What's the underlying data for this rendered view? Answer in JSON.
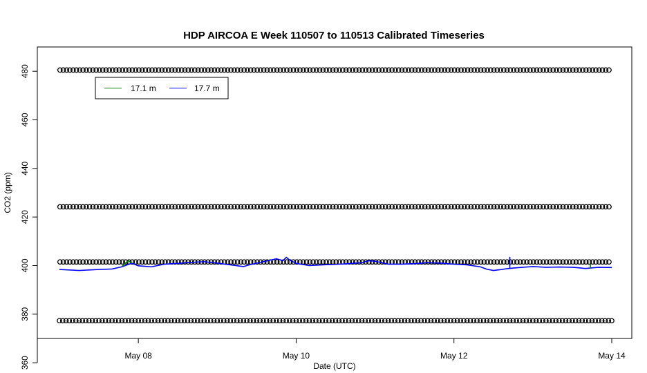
{
  "chart_data": {
    "type": "line",
    "title": "HDP AIRCOA E  Week 110507 to 110513  Calibrated Timeseries",
    "xlabel": "Date (UTC)",
    "ylabel": "CO2 (ppm)",
    "xlim": [
      "2011-05-07T00:00",
      "2011-05-14T00:00"
    ],
    "ylim": [
      370,
      490
    ],
    "x_ticks": [
      {
        "t": "2011-05-08",
        "label": "May 08"
      },
      {
        "t": "2011-05-10",
        "label": "May 10"
      },
      {
        "t": "2011-05-12",
        "label": "May 12"
      },
      {
        "t": "2011-05-14",
        "label": "May 14"
      }
    ],
    "y_ticks": [
      360,
      380,
      400,
      420,
      440,
      460,
      480
    ],
    "grid": false,
    "legend": {
      "position": "top-left",
      "entries": [
        {
          "name": "17.1 m",
          "color": "#008000"
        },
        {
          "name": "17.7 m",
          "color": "#0000ff"
        }
      ]
    },
    "calibration_points": {
      "marker": "open-circle",
      "color": "#000000",
      "levels": [
        {
          "value": 480.5,
          "start": "2011-05-07T00:10",
          "end": "2011-05-14T00:00",
          "step_hours": 1
        },
        {
          "value": 424.2,
          "start": "2011-05-07T00:10",
          "end": "2011-05-14T00:00",
          "step_hours": 1
        },
        {
          "value": 401.5,
          "start": "2011-05-07T00:10",
          "end": "2011-05-14T00:00",
          "step_hours": 1
        },
        {
          "value": 377.3,
          "start": "2011-05-07T00:00",
          "end": "2011-05-14T00:00",
          "step_hours": 1
        }
      ]
    },
    "series": [
      {
        "name": "17.7 m",
        "color": "#0000ff",
        "points": [
          [
            "2011-05-07T00:00",
            398.4
          ],
          [
            "2011-05-07T06:00",
            398.0
          ],
          [
            "2011-05-07T12:00",
            398.4
          ],
          [
            "2011-05-07T16:00",
            398.6
          ],
          [
            "2011-05-07T19:00",
            399.5
          ],
          [
            "2011-05-07T22:00",
            401.0
          ],
          [
            "2011-05-08T00:00",
            399.9
          ],
          [
            "2011-05-08T04:00",
            399.5
          ],
          [
            "2011-05-08T08:00",
            400.6
          ],
          [
            "2011-05-08T12:00",
            400.9
          ],
          [
            "2011-05-08T16:00",
            401.3
          ],
          [
            "2011-05-08T20:00",
            401.6
          ],
          [
            "2011-05-09T00:00",
            401.0
          ],
          [
            "2011-05-09T04:00",
            400.3
          ],
          [
            "2011-05-09T08:00",
            399.6
          ],
          [
            "2011-05-09T10:00",
            400.4
          ],
          [
            "2011-05-09T12:00",
            401.0
          ],
          [
            "2011-05-09T14:00",
            401.6
          ],
          [
            "2011-05-09T16:00",
            402.2
          ],
          [
            "2011-05-09T18:00",
            402.8
          ],
          [
            "2011-05-09T20:00",
            402.0
          ],
          [
            "2011-05-09T21:00",
            403.4
          ],
          [
            "2011-05-09T22:00",
            402.3
          ],
          [
            "2011-05-10T00:00",
            400.9
          ],
          [
            "2011-05-10T04:00",
            400.0
          ],
          [
            "2011-05-10T08:00",
            400.3
          ],
          [
            "2011-05-10T12:00",
            400.5
          ],
          [
            "2011-05-10T16:00",
            400.8
          ],
          [
            "2011-05-10T20:00",
            401.2
          ],
          [
            "2011-05-10T22:00",
            402.0
          ],
          [
            "2011-05-11T00:00",
            401.8
          ],
          [
            "2011-05-11T04:00",
            400.6
          ],
          [
            "2011-05-11T08:00",
            400.6
          ],
          [
            "2011-05-11T12:00",
            400.8
          ],
          [
            "2011-05-11T16:00",
            401.2
          ],
          [
            "2011-05-11T20:00",
            401.0
          ],
          [
            "2011-05-12T00:00",
            400.6
          ],
          [
            "2011-05-12T04:00",
            400.3
          ],
          [
            "2011-05-12T08:00",
            399.5
          ],
          [
            "2011-05-12T10:00",
            398.5
          ],
          [
            "2011-05-12T12:00",
            398.0
          ],
          [
            "2011-05-12T14:00",
            398.3
          ],
          [
            "2011-05-12T16:00",
            398.7
          ],
          [
            "2011-05-12T18:00",
            399.0
          ],
          [
            "2011-05-12T20:00",
            399.2
          ],
          [
            "2011-05-12T22:00",
            399.4
          ],
          [
            "2011-05-13T00:00",
            399.6
          ],
          [
            "2011-05-13T04:00",
            399.3
          ],
          [
            "2011-05-13T08:00",
            399.4
          ],
          [
            "2011-05-13T12:00",
            399.3
          ],
          [
            "2011-05-13T14:00",
            399.1
          ],
          [
            "2011-05-13T16:00",
            398.8
          ],
          [
            "2011-05-13T20:00",
            399.3
          ],
          [
            "2011-05-14T00:00",
            399.2
          ]
        ]
      },
      {
        "name": "17.1 m",
        "color": "#008000",
        "points": [
          [
            "2011-05-07T19:00",
            399.6
          ],
          [
            "2011-05-07T20:00",
            401.0
          ],
          [
            "2011-05-07T21:00",
            402.0
          ],
          [
            "2011-05-07T22:00",
            401.0
          ]
        ]
      }
    ],
    "spikes": [
      {
        "series": "17.7 m",
        "t": "2011-05-12T17:00",
        "base": 398.8,
        "peak": 403.6
      },
      {
        "series": "17.1 m",
        "t": "2011-05-13T17:30",
        "base": 398.8,
        "peak": 400.6
      }
    ]
  }
}
